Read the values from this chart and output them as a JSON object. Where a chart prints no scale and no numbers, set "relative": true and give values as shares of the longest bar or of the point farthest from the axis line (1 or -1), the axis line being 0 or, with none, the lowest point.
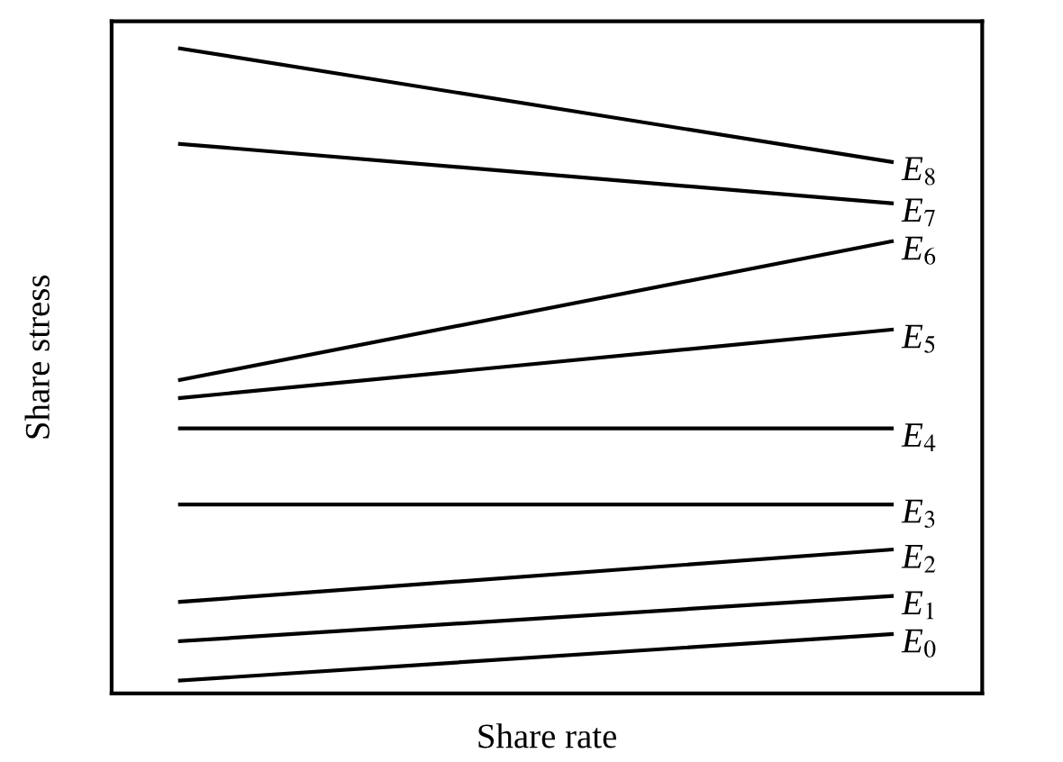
{
  "chart_data": {
    "type": "line",
    "relative": true,
    "xlabel": "Share rate",
    "ylabel": "Share stress",
    "categories": [
      null,
      null
    ],
    "series": [
      {
        "name": "E$_{8}$",
        "color": "#000000",
        "values": [
          1.0,
          0.824
        ]
      },
      {
        "name": "E$_{7}$",
        "color": "#000000",
        "values": [
          0.852,
          0.76
        ]
      },
      {
        "name": "E$_{6}$",
        "color": "#000000",
        "values": [
          0.486,
          0.701
        ]
      },
      {
        "name": "E$_{5}$",
        "color": "#000000",
        "values": [
          0.458,
          0.564
        ]
      },
      {
        "name": "E$_{4}$",
        "color": "#000000",
        "values": [
          0.411,
          0.411
        ]
      },
      {
        "name": "E$_{3}$",
        "color": "#000000",
        "values": [
          0.293,
          0.293
        ]
      },
      {
        "name": "E$_{2}$",
        "color": "#000000",
        "values": [
          0.142,
          0.223
        ]
      },
      {
        "name": "E$_{1}$",
        "color": "#000000",
        "values": [
          0.081,
          0.151
        ]
      },
      {
        "name": "E$_{0}$",
        "color": "#000000",
        "values": [
          0.02,
          0.092
        ]
      }
    ],
    "legend": false
  }
}
